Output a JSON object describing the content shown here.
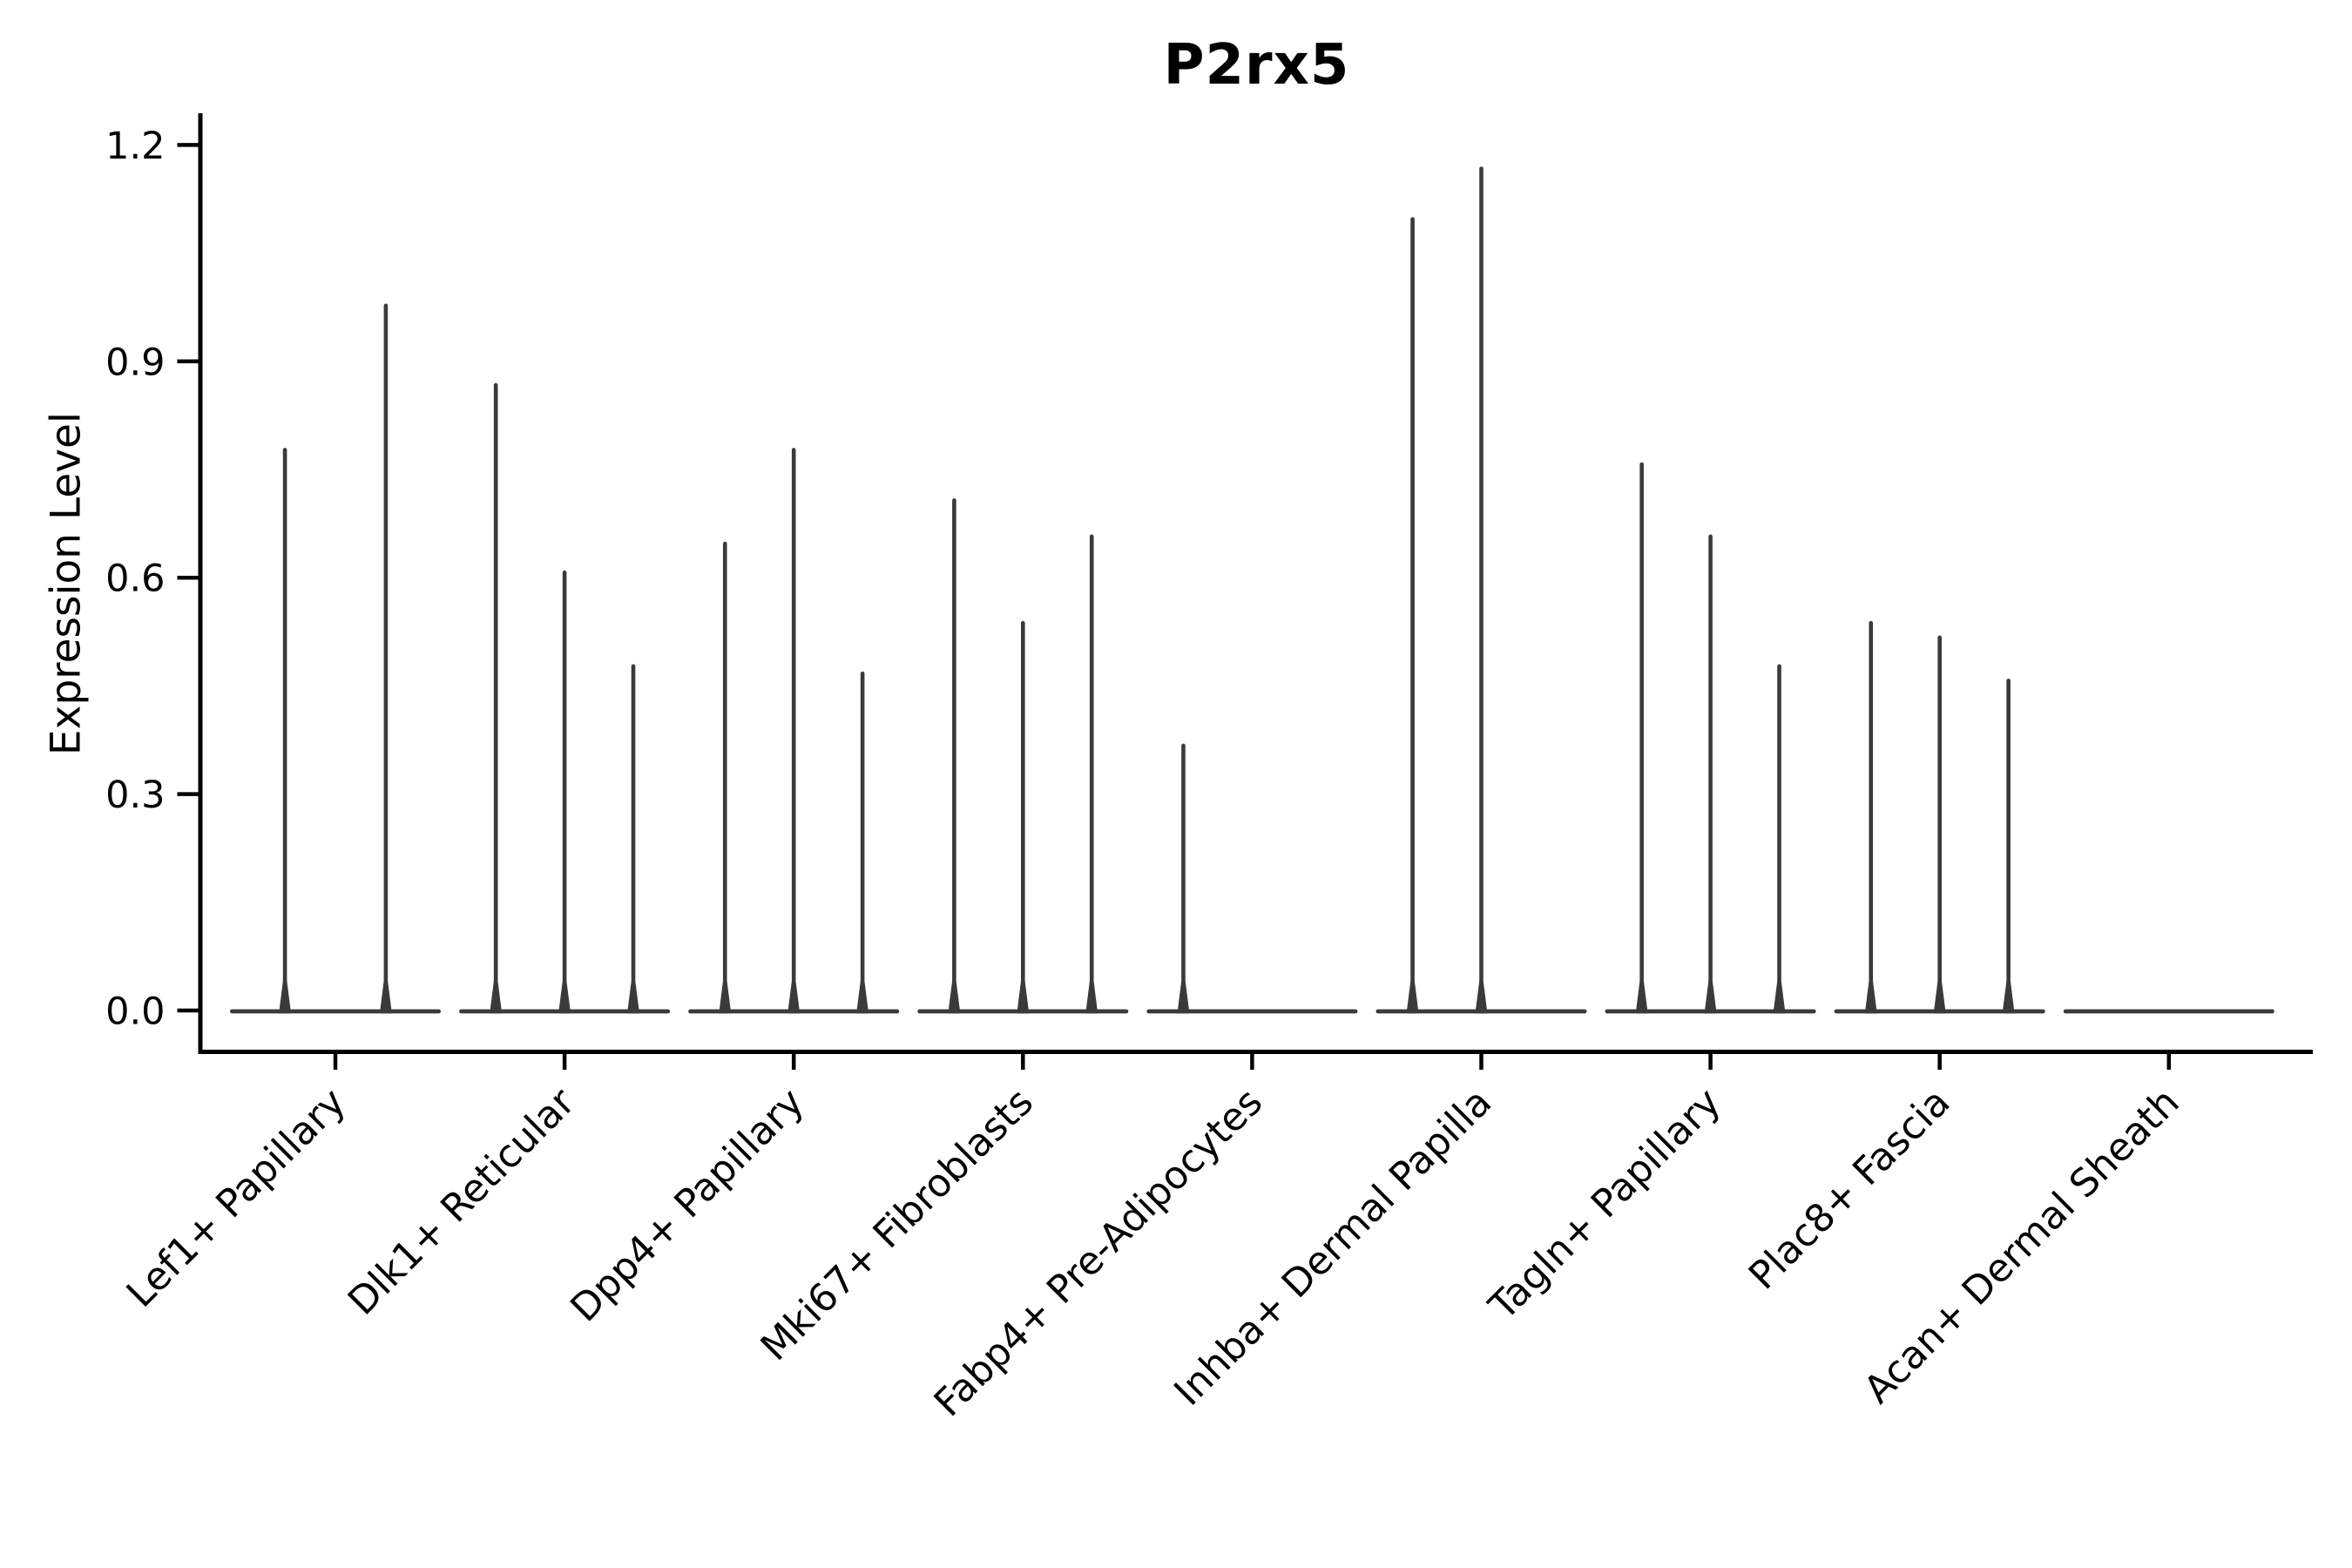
{
  "chart_data": {
    "type": "violin",
    "title": "P2rx5",
    "ylabel": "Expression Level",
    "xlabel": "",
    "ylim": [
      0,
      1.2
    ],
    "y_ticks": [
      0.0,
      0.3,
      0.6,
      0.9,
      1.2
    ],
    "y_tick_labels": [
      "0.0",
      "0.3",
      "0.6",
      "0.9",
      "1.2"
    ],
    "grid": false,
    "legend": "none",
    "violin_color": "#3a3a3a",
    "axis_color": "#000000",
    "categories": [
      "Lef1+ Papillary",
      "Dlk1+ Reticular",
      "Dpp4+ Papillary",
      "Mki67+ Fibroblasts",
      "Fabp4+ Pre-Adipocytes",
      "Inhba+ Dermal Papilla",
      "Tagln+ Papillary",
      "Plac8+ Fascia",
      "Acan+ Dermal Sheath"
    ],
    "groups": [
      {
        "category": "Lef1+ Papillary",
        "baseline_at_zero": true,
        "spikes": [
          {
            "pos": -0.22,
            "max": 0.78
          },
          {
            "pos": 0.22,
            "max": 0.98
          }
        ]
      },
      {
        "category": "Dlk1+ Reticular",
        "baseline_at_zero": true,
        "spikes": [
          {
            "pos": -0.3,
            "max": 0.87
          },
          {
            "pos": 0.0,
            "max": 0.61
          },
          {
            "pos": 0.3,
            "max": 0.48
          }
        ]
      },
      {
        "category": "Dpp4+ Papillary",
        "baseline_at_zero": true,
        "spikes": [
          {
            "pos": -0.3,
            "max": 0.65
          },
          {
            "pos": 0.0,
            "max": 0.78
          },
          {
            "pos": 0.3,
            "max": 0.47
          }
        ]
      },
      {
        "category": "Mki67+ Fibroblasts",
        "baseline_at_zero": true,
        "spikes": [
          {
            "pos": -0.3,
            "max": 0.71
          },
          {
            "pos": 0.0,
            "max": 0.54
          },
          {
            "pos": 0.3,
            "max": 0.66
          }
        ]
      },
      {
        "category": "Fabp4+ Pre-Adipocytes",
        "baseline_at_zero": true,
        "spikes": [
          {
            "pos": -0.3,
            "max": 0.37
          }
        ]
      },
      {
        "category": "Inhba+ Dermal Papilla",
        "baseline_at_zero": true,
        "spikes": [
          {
            "pos": -0.3,
            "max": 1.1
          },
          {
            "pos": 0.0,
            "max": 1.17
          }
        ]
      },
      {
        "category": "Tagln+ Papillary",
        "baseline_at_zero": true,
        "spikes": [
          {
            "pos": -0.3,
            "max": 0.76
          },
          {
            "pos": 0.0,
            "max": 0.66
          },
          {
            "pos": 0.3,
            "max": 0.48
          }
        ]
      },
      {
        "category": "Plac8+ Fascia",
        "baseline_at_zero": true,
        "spikes": [
          {
            "pos": -0.3,
            "max": 0.54
          },
          {
            "pos": 0.0,
            "max": 0.52
          },
          {
            "pos": 0.3,
            "max": 0.46
          }
        ]
      },
      {
        "category": "Acan+ Dermal Sheath",
        "baseline_at_zero": true,
        "spikes": []
      }
    ]
  }
}
